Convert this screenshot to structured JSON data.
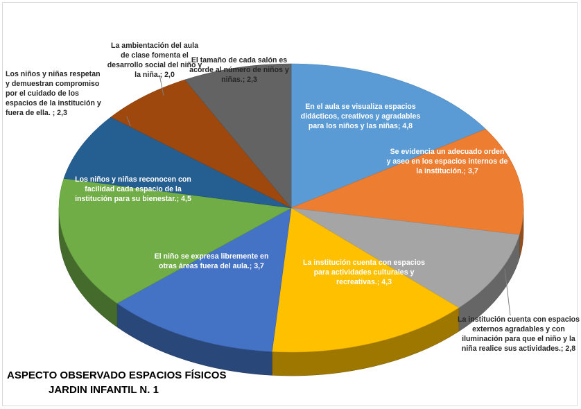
{
  "chart_data": {
    "type": "pie",
    "style": "3d-pie",
    "title_lines": [
      "ASPECTO OBSERVADO ESPACIOS FÍSICOS",
      "JARDIN INFANTIL N. 1"
    ],
    "slices": [
      {
        "label_lines": [
          "En el aula se visualiza  espacios",
          "didácticos, creativos y agradables",
          "para los niños y las niñas; 4,8"
        ],
        "value": 4.8,
        "color": "#5B9BD5",
        "label_pos": "inside"
      },
      {
        "label_lines": [
          "Se evidencia un adecuado orden",
          "y aseo en los espacios internos de",
          "la institución.; 3,7"
        ],
        "value": 3.7,
        "color": "#ED7D31",
        "label_pos": "inside"
      },
      {
        "label_lines": [
          "La institución cuenta con espacios",
          "externos agradables y con",
          "iluminación para que el niño y la",
          "niña realice sus actividades.; 2,8"
        ],
        "value": 2.8,
        "color": "#A5A5A5",
        "label_pos": "outside"
      },
      {
        "label_lines": [
          "La institución cuenta con espacios",
          "para actividades culturales y",
          "recreativas.; 4,3"
        ],
        "value": 4.3,
        "color": "#FFC000",
        "label_pos": "inside"
      },
      {
        "label_lines": [
          "El niño se expresa libremente en",
          "otras áreas fuera del aula.; 3,7"
        ],
        "value": 3.7,
        "color": "#4472C4",
        "label_pos": "inside"
      },
      {
        "label_lines": [
          "Los niños y niñas reconocen con",
          "facilidad cada espacio de la",
          "institución para su bienestar.; 4,5"
        ],
        "value": 4.5,
        "color": "#70AD47",
        "label_pos": "inside"
      },
      {
        "label_lines": [
          "Los niños y niñas respetan",
          "y demuestran compromiso",
          "por el cuidado de los",
          "espacios de la institución y",
          "fuera de ella. ; 2,3"
        ],
        "value": 2.3,
        "color": "#255E91",
        "label_pos": "outside"
      },
      {
        "label_lines": [
          "La ambientación del aula",
          "de clase fomenta el",
          "desarrollo social del niño y",
          "la niña.; 2,0"
        ],
        "value": 2.0,
        "color": "#9E480E",
        "label_pos": "outside"
      },
      {
        "label_lines": [
          "El tamaño de cada salón es",
          "acorde al número  de niños y",
          "niñas.; 2,3"
        ],
        "value": 2.3,
        "color": "#636363",
        "label_pos": "outside"
      }
    ]
  }
}
